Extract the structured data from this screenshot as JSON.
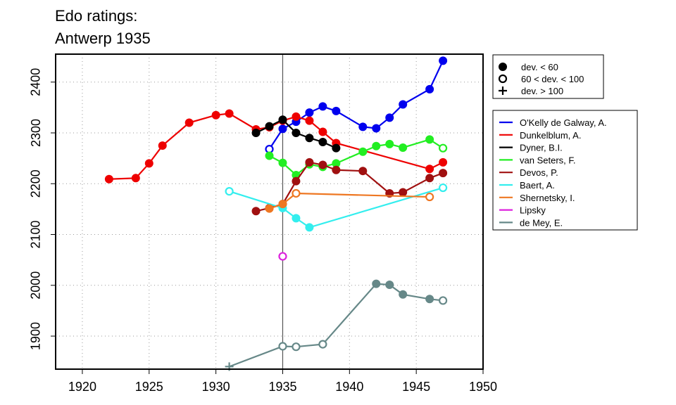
{
  "chart_data": {
    "type": "line",
    "title_lines": [
      "Edo ratings:",
      "Antwerp 1935"
    ],
    "xlabel": "",
    "ylabel": "",
    "xlim": [
      1918,
      1950
    ],
    "ylim": [
      1835,
      2455
    ],
    "x_ticks": [
      1920,
      1925,
      1930,
      1935,
      1940,
      1945,
      1950
    ],
    "y_ticks": [
      1900,
      2000,
      2100,
      2200,
      2300,
      2400
    ],
    "grid": true,
    "reference_line_x": 1935,
    "marker_legend": [
      {
        "marker": "filled",
        "label": "dev. < 60"
      },
      {
        "marker": "open",
        "label": "60 < dev. < 100"
      },
      {
        "marker": "plus",
        "label": "dev. > 100"
      }
    ],
    "series": [
      {
        "name": "O'Kelly de Galway, A.",
        "color": "#0000ee",
        "points": [
          [
            1934,
            2268,
            "open"
          ],
          [
            1935,
            2308,
            "filled"
          ],
          [
            1936,
            2322,
            "filled"
          ],
          [
            1937,
            2340,
            "filled"
          ],
          [
            1938,
            2352,
            "filled"
          ],
          [
            1939,
            2343,
            "filled"
          ],
          [
            1941,
            2312,
            "filled"
          ],
          [
            1942,
            2309,
            "filled"
          ],
          [
            1943,
            2330,
            "filled"
          ],
          [
            1944,
            2356,
            "filled"
          ],
          [
            1946,
            2386,
            "filled"
          ],
          [
            1947,
            2442,
            "filled"
          ]
        ]
      },
      {
        "name": "Dunkelblum, A.",
        "color": "#ee0000",
        "points": [
          [
            1922,
            2209,
            "filled"
          ],
          [
            1924,
            2211,
            "filled"
          ],
          [
            1925,
            2240,
            "filled"
          ],
          [
            1926,
            2275,
            "filled"
          ],
          [
            1928,
            2320,
            "filled"
          ],
          [
            1930,
            2335,
            "filled"
          ],
          [
            1931,
            2338,
            "filled"
          ],
          [
            1933,
            2307,
            "filled"
          ],
          [
            1934,
            2311,
            "filled"
          ],
          [
            1935,
            2324,
            "filled"
          ],
          [
            1936,
            2332,
            "filled"
          ],
          [
            1937,
            2324,
            "filled"
          ],
          [
            1938,
            2302,
            "filled"
          ],
          [
            1939,
            2280,
            "filled"
          ],
          [
            1946,
            2229,
            "filled"
          ],
          [
            1947,
            2242,
            "filled"
          ]
        ]
      },
      {
        "name": "Dyner, B.I.",
        "color": "#000000",
        "points": [
          [
            1933,
            2300,
            "filled"
          ],
          [
            1934,
            2313,
            "filled"
          ],
          [
            1935,
            2326,
            "filled"
          ],
          [
            1936,
            2300,
            "filled"
          ],
          [
            1937,
            2290,
            "filled"
          ],
          [
            1938,
            2282,
            "filled"
          ],
          [
            1939,
            2270,
            "filled"
          ]
        ]
      },
      {
        "name": "van Seters, F.",
        "color": "#22ee22",
        "points": [
          [
            1934,
            2255,
            "filled"
          ],
          [
            1935,
            2241,
            "filled"
          ],
          [
            1936,
            2217,
            "filled"
          ],
          [
            1937,
            2238,
            "filled"
          ],
          [
            1938,
            2233,
            "filled"
          ],
          [
            1939,
            2240,
            "filled"
          ],
          [
            1941,
            2263,
            "filled"
          ],
          [
            1942,
            2274,
            "filled"
          ],
          [
            1943,
            2278,
            "filled"
          ],
          [
            1944,
            2271,
            "filled"
          ],
          [
            1946,
            2287,
            "filled"
          ],
          [
            1947,
            2270,
            "open"
          ]
        ]
      },
      {
        "name": "Devos, P.",
        "color": "#a01010",
        "points": [
          [
            1933,
            2146,
            "filled"
          ],
          [
            1934,
            2152,
            "filled"
          ],
          [
            1935,
            2160,
            "filled"
          ],
          [
            1936,
            2205,
            "filled"
          ],
          [
            1937,
            2242,
            "filled"
          ],
          [
            1938,
            2237,
            "filled"
          ],
          [
            1939,
            2227,
            "filled"
          ],
          [
            1941,
            2225,
            "filled"
          ],
          [
            1943,
            2181,
            "filled"
          ],
          [
            1944,
            2183,
            "filled"
          ],
          [
            1946,
            2211,
            "filled"
          ],
          [
            1947,
            2221,
            "filled"
          ]
        ]
      },
      {
        "name": "Baert, A.",
        "color": "#33eeee",
        "points": [
          [
            1931,
            2185,
            "open"
          ],
          [
            1935,
            2152,
            "filled"
          ],
          [
            1936,
            2132,
            "filled"
          ],
          [
            1937,
            2114,
            "filled"
          ],
          [
            1947,
            2192,
            "open"
          ]
        ]
      },
      {
        "name": "Shernetsky, I.",
        "color": "#ee7722",
        "points": [
          [
            1934,
            2151,
            "filled"
          ],
          [
            1935,
            2160,
            "filled"
          ],
          [
            1936,
            2181,
            "open"
          ],
          [
            1946,
            2174,
            "open"
          ]
        ]
      },
      {
        "name": "Lipsky",
        "color": "#dd22dd",
        "points": [
          [
            1935,
            2057,
            "open"
          ]
        ]
      },
      {
        "name": "de Mey, E.",
        "color": "#668888",
        "points": [
          [
            1931,
            1840,
            "plus"
          ],
          [
            1935,
            1880,
            "open"
          ],
          [
            1936,
            1879,
            "open"
          ],
          [
            1938,
            1884,
            "open"
          ],
          [
            1942,
            2003,
            "filled"
          ],
          [
            1943,
            2001,
            "filled"
          ],
          [
            1944,
            1982,
            "filled"
          ],
          [
            1946,
            1973,
            "filled"
          ],
          [
            1947,
            1970,
            "open"
          ]
        ]
      }
    ]
  }
}
